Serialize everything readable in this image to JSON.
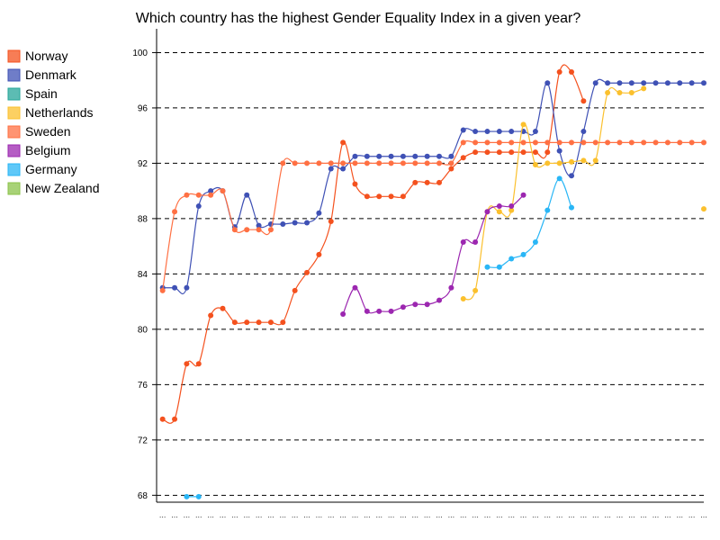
{
  "chart_data": {
    "type": "line",
    "title": "Which country has the highest Gender Equality Index in a given year?",
    "xlabel": "",
    "ylabel": "",
    "ylim": [
      67.5,
      101.2
    ],
    "yticks": [
      68,
      72,
      76,
      80,
      84,
      88,
      92,
      96,
      100
    ],
    "legend_position": "left",
    "grid": true,
    "x_count": 46,
    "x_tick_label": "...",
    "series": [
      {
        "name": "Norway",
        "color": "#f4511e",
        "values": [
          73.5,
          73.5,
          77.5,
          77.5,
          81.0,
          81.5,
          80.5,
          80.5,
          80.5,
          80.5,
          80.5,
          82.8,
          84.1,
          85.4,
          87.8,
          93.5,
          90.5,
          89.6,
          89.6,
          89.6,
          89.6,
          90.6,
          90.6,
          90.6,
          91.6,
          92.4,
          92.8,
          92.8,
          92.8,
          92.8,
          92.8,
          92.8,
          92.8,
          98.6,
          98.6,
          96.5,
          null,
          null,
          null,
          null,
          null,
          null,
          null,
          null,
          null,
          null
        ]
      },
      {
        "name": "Denmark",
        "color": "#3f51b5",
        "values": [
          83.0,
          83.0,
          83.0,
          88.9,
          90.0,
          90.0,
          87.4,
          89.7,
          87.5,
          87.6,
          87.6,
          87.7,
          87.7,
          88.4,
          91.6,
          91.6,
          92.5,
          92.5,
          92.5,
          92.5,
          92.5,
          92.5,
          92.5,
          92.5,
          92.5,
          94.4,
          94.3,
          94.3,
          94.3,
          94.3,
          94.3,
          94.3,
          97.8,
          92.9,
          91.1,
          94.3,
          97.8,
          97.8,
          97.8,
          97.8,
          97.8,
          97.8,
          97.8,
          97.8,
          97.8,
          97.8
        ]
      },
      {
        "name": "Spain",
        "color": "#26a69a",
        "values": [
          null,
          null,
          null,
          null,
          null,
          null,
          null,
          null,
          null,
          null,
          null,
          null,
          null,
          null,
          null,
          null,
          null,
          null,
          null,
          null,
          null,
          null,
          null,
          null,
          null,
          null,
          null,
          null,
          null,
          null,
          null,
          null,
          null,
          null,
          null,
          null,
          null,
          null,
          null,
          null,
          null,
          null,
          null,
          null,
          null,
          null
        ]
      },
      {
        "name": "Netherlands",
        "color": "#fbc02d",
        "values": [
          null,
          null,
          null,
          null,
          null,
          null,
          null,
          null,
          null,
          null,
          null,
          null,
          null,
          null,
          null,
          null,
          null,
          null,
          null,
          null,
          null,
          null,
          null,
          null,
          null,
          82.2,
          82.8,
          88.5,
          88.5,
          88.6,
          94.8,
          91.9,
          92.0,
          92.0,
          92.1,
          92.2,
          92.2,
          97.1,
          97.1,
          97.1,
          97.4,
          null,
          null,
          null,
          null,
          88.7
        ]
      },
      {
        "name": "Sweden",
        "color": "#ff7043",
        "values": [
          82.8,
          88.5,
          89.7,
          89.7,
          89.7,
          90.0,
          87.2,
          87.2,
          87.2,
          87.2,
          92.0,
          92.0,
          92.0,
          92.0,
          92.0,
          92.0,
          92.0,
          92.0,
          92.0,
          92.0,
          92.0,
          92.0,
          92.0,
          92.0,
          92.0,
          93.5,
          93.5,
          93.5,
          93.5,
          93.5,
          93.5,
          93.5,
          93.5,
          93.5,
          93.5,
          93.5,
          93.5,
          93.5,
          93.5,
          93.5,
          93.5,
          93.5,
          93.5,
          93.5,
          93.5,
          93.5
        ]
      },
      {
        "name": "Belgium",
        "color": "#9c27b0",
        "values": [
          null,
          null,
          null,
          null,
          null,
          null,
          null,
          null,
          null,
          null,
          null,
          null,
          null,
          null,
          null,
          81.1,
          83.0,
          81.3,
          81.3,
          81.3,
          81.6,
          81.8,
          81.8,
          82.1,
          83.0,
          86.3,
          86.3,
          88.5,
          88.9,
          88.9,
          89.7,
          null,
          null,
          null,
          null,
          null,
          null,
          null,
          null,
          null,
          null,
          null,
          null,
          null,
          null,
          null
        ]
      },
      {
        "name": "Germany",
        "color": "#29b6f6",
        "values": [
          null,
          null,
          67.9,
          67.9,
          null,
          null,
          null,
          null,
          null,
          null,
          null,
          null,
          null,
          null,
          null,
          null,
          null,
          null,
          null,
          null,
          null,
          null,
          null,
          null,
          null,
          null,
          null,
          84.5,
          84.5,
          85.1,
          85.4,
          86.3,
          88.6,
          90.9,
          88.8,
          null,
          null,
          null,
          null,
          null,
          null,
          null,
          null,
          null,
          null,
          null
        ]
      },
      {
        "name": "New Zealand",
        "color": "#8bc34a",
        "values": [
          null,
          null,
          null,
          null,
          null,
          null,
          null,
          null,
          null,
          null,
          null,
          null,
          null,
          null,
          null,
          null,
          null,
          null,
          null,
          null,
          null,
          null,
          null,
          null,
          null,
          null,
          null,
          null,
          null,
          null,
          null,
          null,
          null,
          null,
          null,
          null,
          null,
          null,
          null,
          null,
          null,
          null,
          null,
          null,
          null,
          null
        ]
      }
    ]
  }
}
